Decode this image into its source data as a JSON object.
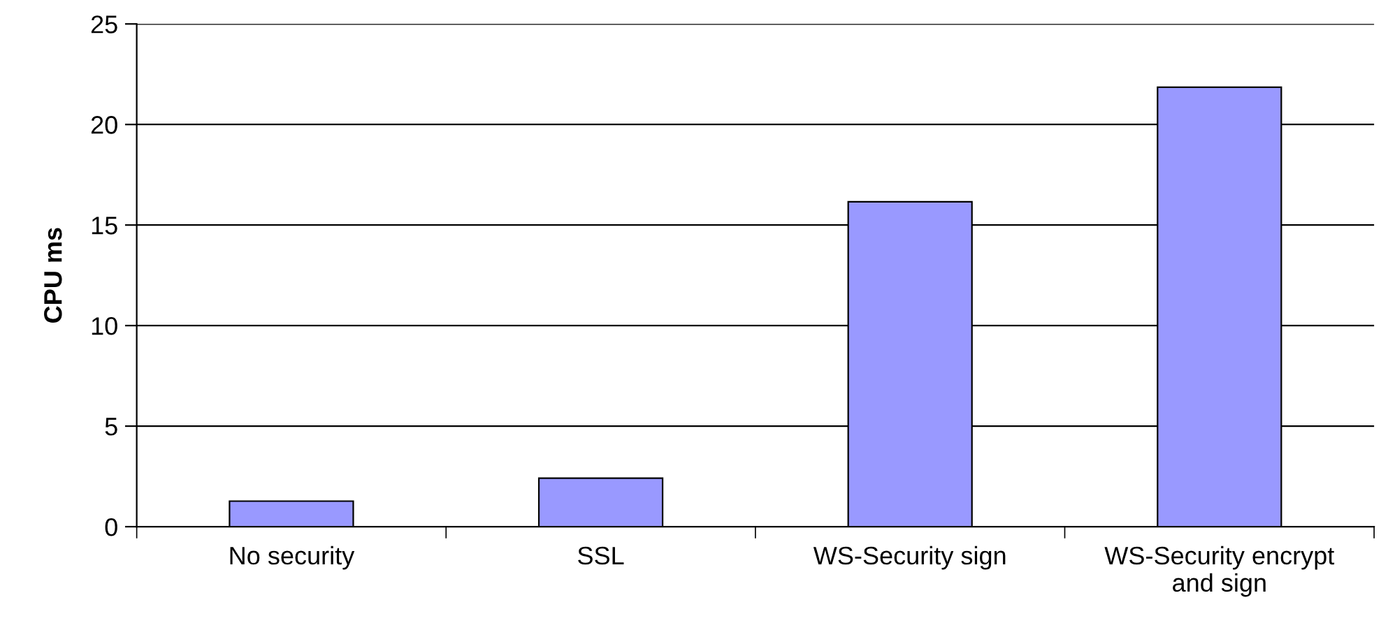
{
  "chart_data": {
    "type": "bar",
    "ylabel": "CPU ms",
    "categories": [
      "No security",
      "SSL",
      "WS-Security sign",
      "WS-Security encrypt and sign"
    ],
    "values": [
      1.27,
      2.41,
      16.16,
      21.85
    ],
    "color": "#9999ff",
    "ylim": [
      0,
      25
    ],
    "yticks": [
      0,
      5,
      10,
      15,
      20,
      25
    ],
    "grid": "y",
    "legend": false
  }
}
